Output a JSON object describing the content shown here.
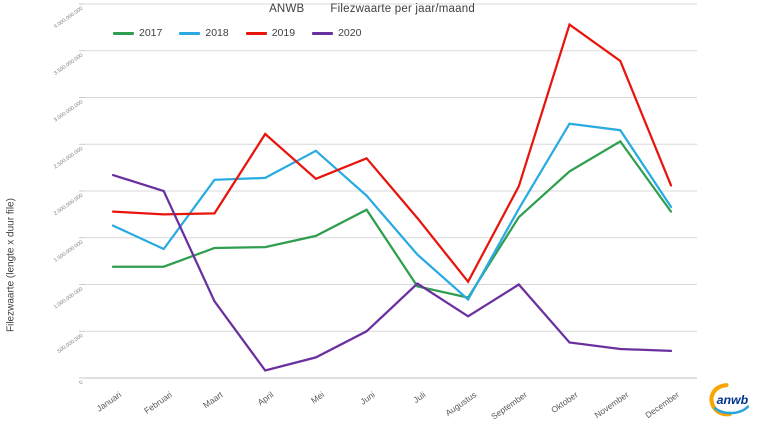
{
  "title": {
    "brand": "ANWB",
    "text": "Filezwaarte per jaar/maand"
  },
  "legend": {
    "position": "top-left"
  },
  "logo": {
    "text": "anwb"
  },
  "colors": {
    "grid": "#d9d9d9",
    "axis": "#bfbfbf",
    "title_text": "#404040",
    "tick_text": "#808080",
    "month_text": "#595959"
  },
  "chart_data": {
    "type": "line",
    "title": "ANWB Filezwaarte per jaar/maand",
    "xlabel": "",
    "ylabel": "Filezwaarte (lengte x duur file)",
    "ylim": [
      0,
      4000000000
    ],
    "y_tick_step": 500000000,
    "grid": true,
    "legend_position": "top-left",
    "y_tick_labels": [
      "0",
      "500.000.000",
      "1.000.000.000",
      "1.500.000.000",
      "2.000.000.000",
      "2.500.000.000",
      "3.000.000.000",
      "3.500.000.000",
      "4.000.000.000"
    ],
    "categories": [
      "Januari",
      "Februari",
      "Maart",
      "April",
      "Mei",
      "Juni",
      "Juli",
      "Augustus",
      "September",
      "Oktober",
      "November",
      "December"
    ],
    "series": [
      {
        "name": "2017",
        "color": "#2f9e4f",
        "values": [
          1190000000,
          1190000000,
          1390000000,
          1400000000,
          1520000000,
          1800000000,
          980000000,
          860000000,
          1720000000,
          2210000000,
          2530000000,
          1780000000
        ]
      },
      {
        "name": "2018",
        "color": "#29abe2",
        "values": [
          1630000000,
          1380000000,
          2120000000,
          2140000000,
          2430000000,
          1950000000,
          1320000000,
          840000000,
          1810000000,
          2720000000,
          2650000000,
          1830000000
        ]
      },
      {
        "name": "2019",
        "color": "#e8150d",
        "values": [
          1780000000,
          1750000000,
          1760000000,
          2610000000,
          2130000000,
          2350000000,
          1710000000,
          1030000000,
          2050000000,
          3780000000,
          3390000000,
          2060000000
        ]
      },
      {
        "name": "2020",
        "color": "#6a30a0",
        "values": [
          2170000000,
          2000000000,
          820000000,
          80000000,
          220000000,
          500000000,
          1010000000,
          660000000,
          1000000000,
          380000000,
          310000000,
          290000000
        ]
      }
    ]
  }
}
